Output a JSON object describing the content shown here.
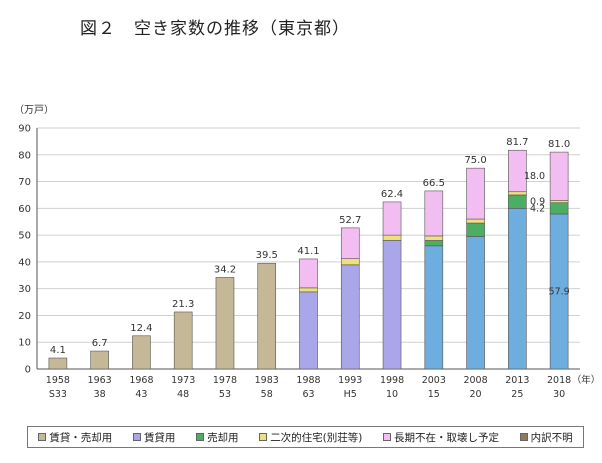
{
  "title": "図２　空き家数の推移（東京都）",
  "chart_data": {
    "type": "stacked-bar",
    "ylabel": "（万戸）",
    "ylim": [
      0,
      90
    ],
    "yticks": [
      0,
      10,
      20,
      30,
      40,
      50,
      60,
      70,
      80,
      90
    ],
    "xlabel_suffix": "（年）",
    "categories": [
      "1958",
      "1963",
      "1968",
      "1973",
      "1978",
      "1983",
      "1988",
      "1993",
      "1998",
      "2003",
      "2008",
      "2013",
      "2018"
    ],
    "categories_jp": [
      "S33",
      "38",
      "43",
      "48",
      "53",
      "58",
      "63",
      "H5",
      "10",
      "15",
      "20",
      "25",
      "30"
    ],
    "totals": [
      4.1,
      6.7,
      12.4,
      21.3,
      34.2,
      39.5,
      41.1,
      52.7,
      62.4,
      66.5,
      75.0,
      81.7,
      81.0
    ],
    "total_labels": [
      "4.1",
      "6.7",
      "12.4",
      "21.3",
      "34.2",
      "39.5",
      "41.1",
      "52.7",
      "62.4",
      "66.5",
      "75.0",
      "81.7",
      "81.0"
    ],
    "series": [
      {
        "name": "賃貸・売却用",
        "color": "#c4b896",
        "values": [
          4.1,
          6.7,
          12.4,
          21.3,
          34.2,
          39.5,
          0,
          0,
          0,
          0,
          0,
          0,
          0
        ]
      },
      {
        "name": "賃貸用",
        "color": "#a9a6ea",
        "values": [
          0,
          0,
          0,
          0,
          0,
          0,
          28.8,
          38.9,
          48.0,
          0,
          0,
          0,
          0
        ]
      },
      {
        "name": "賃貸用",
        "color": "#6eaedf",
        "values": [
          0,
          0,
          0,
          0,
          0,
          0,
          0,
          0,
          0,
          46.0,
          49.5,
          60.0,
          57.9
        ]
      },
      {
        "name": "売却用",
        "color": "#4cae63",
        "values": [
          0,
          0,
          0,
          0,
          0,
          0,
          0,
          0,
          0,
          2.0,
          5.0,
          5.0,
          4.2
        ]
      },
      {
        "name": "二次的住宅(別荘等)",
        "color": "#ede07d",
        "values": [
          0,
          0,
          0,
          0,
          0,
          0,
          1.5,
          2.3,
          2.0,
          1.7,
          1.5,
          1.2,
          0.9
        ]
      },
      {
        "name": "長期不在・取壊し予定",
        "color": "#f2bdf0",
        "values": [
          0,
          0,
          0,
          0,
          0,
          0,
          10.8,
          11.5,
          12.4,
          16.8,
          19.0,
          15.5,
          18.0
        ]
      },
      {
        "name": "内訳不明",
        "color": "#8c7a61",
        "values": [
          0,
          0,
          0,
          0,
          0,
          0,
          0,
          0,
          0,
          0,
          0,
          0,
          0
        ]
      }
    ],
    "segment_labels_2018": {
      "rent": "57.9",
      "sale": "4.2",
      "second": "0.9",
      "longterm": "18.0"
    },
    "legend": [
      {
        "label": "賃貸・売却用",
        "color": "#c4b896"
      },
      {
        "label": "賃貸用",
        "color": "#a9a6ea"
      },
      {
        "label": "売却用",
        "color": "#4cae63"
      },
      {
        "label": "二次的住宅(別荘等)",
        "color": "#ede07d"
      },
      {
        "label": "長期不在・取壊し予定",
        "color": "#f2bdf0"
      },
      {
        "label": "内訳不明",
        "color": "#8c7a61"
      }
    ]
  }
}
